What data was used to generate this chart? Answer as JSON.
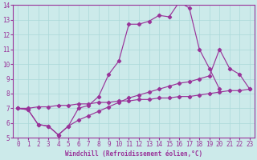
{
  "xlabel": "Windchill (Refroidissement éolien,°C)",
  "xlim": [
    -0.5,
    23.5
  ],
  "ylim": [
    5,
    14
  ],
  "xticks": [
    0,
    1,
    2,
    3,
    4,
    5,
    6,
    7,
    8,
    9,
    10,
    11,
    12,
    13,
    14,
    15,
    16,
    17,
    18,
    19,
    20,
    21,
    22,
    23
  ],
  "yticks": [
    5,
    6,
    7,
    8,
    9,
    10,
    11,
    12,
    13,
    14
  ],
  "bg_color": "#cceaea",
  "line_color": "#993399",
  "grid_color": "#aad8d8",
  "curve1_x": [
    0,
    1,
    2,
    3,
    4,
    5,
    6,
    7,
    8,
    9,
    10,
    11,
    12,
    13,
    14,
    15,
    16,
    17,
    18,
    19,
    20
  ],
  "curve1_y": [
    7.0,
    6.9,
    5.9,
    5.8,
    5.2,
    5.8,
    7.0,
    7.2,
    7.8,
    9.3,
    10.2,
    12.7,
    12.7,
    12.9,
    13.3,
    13.2,
    14.2,
    13.8,
    11.0,
    9.7,
    8.3
  ],
  "curve2_x": [
    0,
    1,
    2,
    3,
    4,
    5,
    6,
    7,
    8,
    9,
    10,
    11,
    12,
    13,
    14,
    15,
    16,
    17,
    18,
    19,
    20,
    21,
    22,
    23
  ],
  "curve2_y": [
    7.0,
    6.9,
    5.9,
    5.8,
    5.2,
    5.8,
    6.2,
    6.5,
    6.8,
    7.1,
    7.4,
    7.7,
    7.9,
    8.1,
    8.3,
    8.5,
    8.7,
    8.8,
    9.0,
    9.2,
    11.0,
    9.7,
    9.3,
    8.3
  ],
  "curve3_x": [
    0,
    1,
    2,
    3,
    4,
    5,
    6,
    7,
    8,
    9,
    10,
    11,
    12,
    13,
    14,
    15,
    16,
    17,
    18,
    19,
    20,
    21,
    22,
    23
  ],
  "curve3_y": [
    7.0,
    7.0,
    7.1,
    7.1,
    7.2,
    7.2,
    7.3,
    7.3,
    7.4,
    7.4,
    7.5,
    7.5,
    7.6,
    7.6,
    7.7,
    7.7,
    7.8,
    7.8,
    7.9,
    8.0,
    8.1,
    8.2,
    8.2,
    8.3
  ]
}
